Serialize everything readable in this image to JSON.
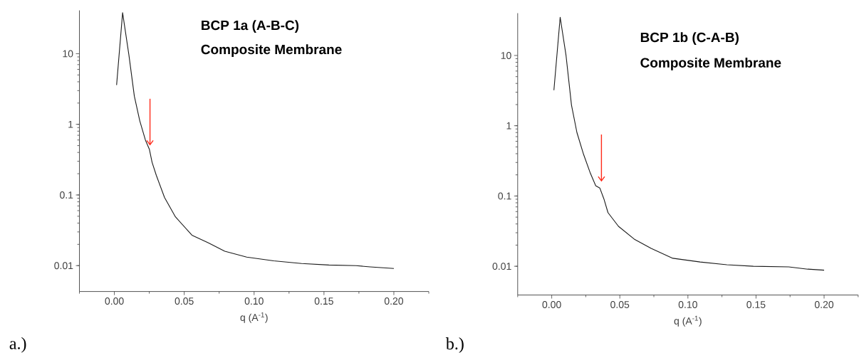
{
  "chart_data": [
    {
      "type": "line",
      "title": "BCP 1a (A-B-C)",
      "subtitle": "Composite Membrane",
      "xlabel": "q (A$^{-1}$)",
      "annotations": [
        "a.)"
      ],
      "log": "y",
      "grid": false,
      "marker": "none",
      "line_style": "solid",
      "xlim": [
        -0.025,
        0.225
      ],
      "ylim": [
        0.0043,
        41
      ],
      "xticks": [
        {
          "value": -0.025,
          "label": null
        },
        {
          "value": 0.0,
          "label": "0.00"
        },
        {
          "value": 0.025,
          "label": null
        },
        {
          "value": 0.05,
          "label": "0.05"
        },
        {
          "value": 0.075,
          "label": null
        },
        {
          "value": 0.1,
          "label": "0.10"
        },
        {
          "value": 0.125,
          "label": null
        },
        {
          "value": 0.15,
          "label": "0.15"
        },
        {
          "value": 0.175,
          "label": null
        },
        {
          "value": 0.2,
          "label": "0.20"
        },
        {
          "value": 0.225,
          "label": null
        }
      ],
      "yticks": [
        0.01,
        0.1,
        1,
        10
      ],
      "x": [
        0.0016,
        0.0059,
        0.0104,
        0.0143,
        0.0182,
        0.0222,
        0.0251,
        0.027,
        0.03,
        0.0359,
        0.0437,
        0.0555,
        0.0673,
        0.079,
        0.0947,
        0.114,
        0.134,
        0.1535,
        0.173,
        0.183,
        0.2
      ],
      "series": [
        {
          "color": "#1a1a1a",
          "values": [
            3.6,
            38,
            9.6,
            2.5,
            1.12,
            0.6,
            0.44,
            0.29,
            0.19,
            0.092,
            0.049,
            0.027,
            0.021,
            0.016,
            0.0132,
            0.0117,
            0.0107,
            0.0102,
            0.01,
            0.0096,
            0.0091
          ]
        }
      ]
    },
    {
      "type": "line",
      "title": "BCP 1b (C-A-B)",
      "subtitle": "Composite Membrane",
      "xlabel": "q (A$^{-1}$)",
      "annotations": [
        "b.)"
      ],
      "log": "y",
      "grid": false,
      "marker": "none",
      "line_style": "solid",
      "xlim": [
        -0.025,
        0.225
      ],
      "ylim": [
        0.0039,
        40
      ],
      "xticks": [
        {
          "value": -0.025,
          "label": null
        },
        {
          "value": 0.0,
          "label": "0.00"
        },
        {
          "value": 0.025,
          "label": null
        },
        {
          "value": 0.05,
          "label": "0.05"
        },
        {
          "value": 0.075,
          "label": null
        },
        {
          "value": 0.1,
          "label": "0.10"
        },
        {
          "value": 0.125,
          "label": null
        },
        {
          "value": 0.15,
          "label": "0.15"
        },
        {
          "value": 0.175,
          "label": null
        },
        {
          "value": 0.2,
          "label": "0.20"
        },
        {
          "value": 0.225,
          "label": null
        }
      ],
      "yticks": [
        0.01,
        0.1,
        1,
        10
      ],
      "x": [
        0.0016,
        0.0062,
        0.0105,
        0.0145,
        0.0185,
        0.0234,
        0.0284,
        0.0323,
        0.0353,
        0.0383,
        0.0413,
        0.049,
        0.061,
        0.073,
        0.0889,
        0.109,
        0.1286,
        0.148,
        0.174,
        0.188,
        0.2
      ],
      "series": [
        {
          "color": "#1a1a1a",
          "values": [
            3.2,
            35,
            10,
            1.97,
            0.8,
            0.39,
            0.21,
            0.14,
            0.13,
            0.091,
            0.058,
            0.037,
            0.024,
            0.018,
            0.013,
            0.0115,
            0.0105,
            0.01,
            0.0098,
            0.0091,
            0.0088
          ]
        }
      ]
    }
  ]
}
